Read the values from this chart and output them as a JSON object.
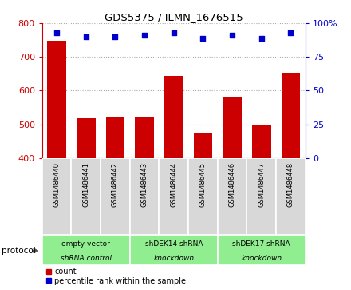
{
  "title": "GDS5375 / ILMN_1676515",
  "samples": [
    "GSM1486440",
    "GSM1486441",
    "GSM1486442",
    "GSM1486443",
    "GSM1486444",
    "GSM1486445",
    "GSM1486446",
    "GSM1486447",
    "GSM1486448"
  ],
  "counts": [
    748,
    519,
    523,
    523,
    643,
    474,
    580,
    497,
    651
  ],
  "percentiles": [
    93,
    90,
    90,
    91,
    93,
    89,
    91,
    89,
    93
  ],
  "ylim_left": [
    400,
    800
  ],
  "ylim_right": [
    0,
    100
  ],
  "yticks_left": [
    400,
    500,
    600,
    700,
    800
  ],
  "yticks_right": [
    0,
    25,
    50,
    75,
    100
  ],
  "bar_color": "#cc0000",
  "scatter_color": "#0000cc",
  "groups": [
    {
      "label1": "empty vector",
      "label2": "shRNA control",
      "start": 0,
      "end": 3
    },
    {
      "label1": "shDEK14 shRNA",
      "label2": "knockdown",
      "start": 3,
      "end": 6
    },
    {
      "label1": "shDEK17 shRNA",
      "label2": "knockdown",
      "start": 6,
      "end": 9
    }
  ],
  "group_color": "#90ee90",
  "protocol_label": "protocol",
  "legend_count": "count",
  "legend_percentile": "percentile rank within the sample",
  "grid_color": "#aaaaaa",
  "sample_bg_color": "#d8d8d8",
  "tick_color_left": "#cc0000",
  "tick_color_right": "#0000cc"
}
